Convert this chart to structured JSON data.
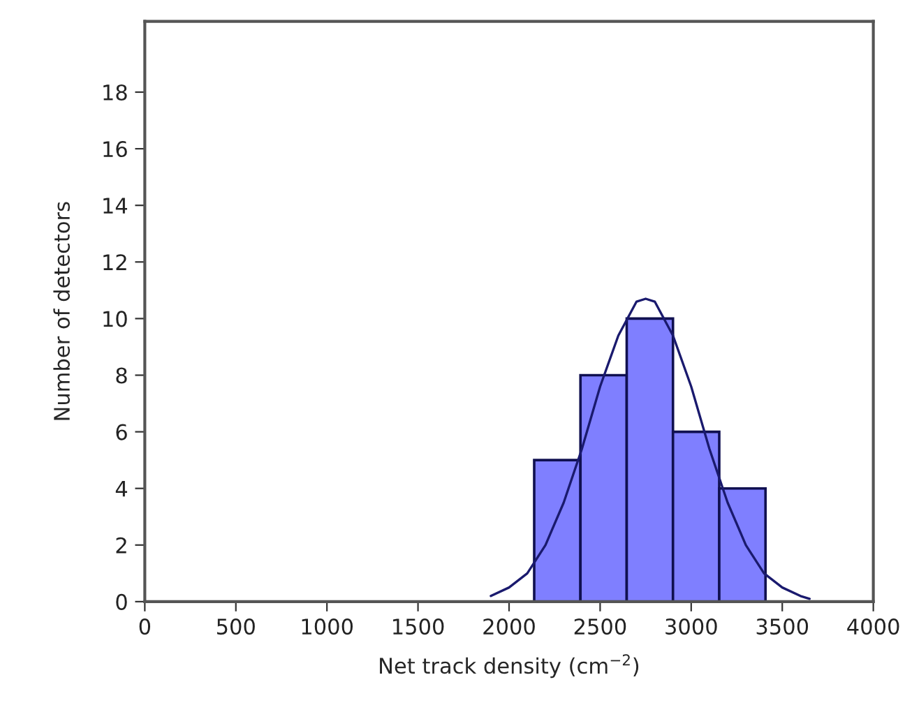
{
  "chart_data": {
    "type": "histogram",
    "xlabel": "Net track density (cm$^{−2}$)",
    "ylabel": "Number of detectors",
    "bins": [
      2138,
      2392,
      2646,
      2900,
      3154,
      3408
    ],
    "values": [
      5,
      8,
      10,
      6,
      4
    ],
    "color": "#7f7fff",
    "series": [
      {
        "type": "line",
        "color": "#1a1a6e",
        "x": [
          1900,
          2000,
          2100,
          2200,
          2300,
          2400,
          2500,
          2600,
          2700,
          2750,
          2800,
          2900,
          3000,
          3100,
          3200,
          3300,
          3400,
          3500,
          3600,
          3650
        ],
        "values": [
          0.2,
          0.5,
          1.0,
          2.0,
          3.5,
          5.4,
          7.6,
          9.4,
          10.6,
          10.7,
          10.6,
          9.4,
          7.6,
          5.4,
          3.5,
          2.0,
          1.0,
          0.5,
          0.2,
          0.1
        ]
      }
    ],
    "xlim": [
      0,
      4000
    ],
    "xticks": [
      0,
      500,
      1000,
      1500,
      2000,
      2500,
      3000,
      3500,
      4000
    ],
    "ylim": [
      0,
      20.5
    ],
    "yticks": [
      0,
      2,
      4,
      6,
      8,
      10,
      12,
      14,
      16,
      18
    ],
    "grid": false,
    "legend": false
  }
}
